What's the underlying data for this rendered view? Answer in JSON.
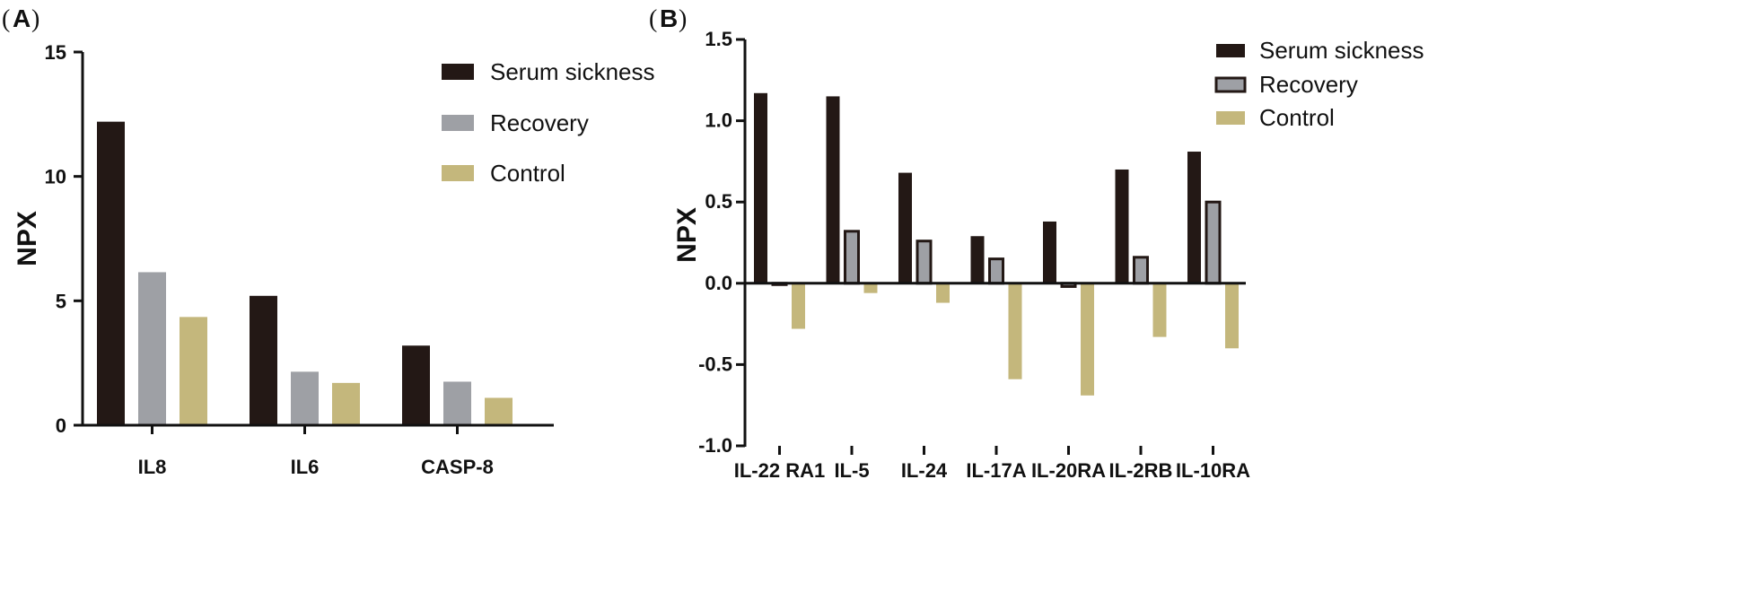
{
  "colors": {
    "serum": "#231815",
    "recovery": "#9ea0a5",
    "control": "#c4b77c",
    "axis": "#111111"
  },
  "chart_data": [
    {
      "panel_open": "(",
      "panel_letter": "A",
      "panel_close": ")",
      "type": "bar",
      "ylabel": "NPX",
      "ylim": [
        0,
        15
      ],
      "yticks": [
        0,
        5,
        10,
        15
      ],
      "ytick_labels": [
        "0",
        "5",
        "10",
        "15"
      ],
      "categories": [
        "IL8",
        "IL6",
        "CASP-8"
      ],
      "series": [
        {
          "name": "Serum sickness",
          "values": [
            12.2,
            5.2,
            3.2
          ]
        },
        {
          "name": "Recovery",
          "values": [
            6.15,
            2.15,
            1.75
          ]
        },
        {
          "name": "Control",
          "values": [
            4.35,
            1.7,
            1.1
          ]
        }
      ],
      "legend_position": "top-right"
    },
    {
      "panel_open": "(",
      "panel_letter": "B",
      "panel_close": ")",
      "type": "bar",
      "ylabel": "NPX",
      "ylim": [
        -1.0,
        1.5
      ],
      "yticks": [
        -1.0,
        -0.5,
        0.0,
        0.5,
        1.0,
        1.5
      ],
      "ytick_labels": [
        "-1.0",
        "-0.5",
        "0.0",
        "0.5",
        "1.0",
        "1.5"
      ],
      "categories": [
        "IL-22 RA1",
        "IL-5",
        "IL-24",
        "IL-17A",
        "IL-20RA",
        "IL-2RB",
        "IL-10RA"
      ],
      "series": [
        {
          "name": "Serum sickness",
          "values": [
            1.17,
            1.15,
            0.68,
            0.29,
            0.38,
            0.7,
            0.81
          ]
        },
        {
          "name": "Recovery",
          "values": [
            0.0,
            0.32,
            0.26,
            0.15,
            -0.02,
            0.16,
            0.5
          ]
        },
        {
          "name": "Control",
          "values": [
            -0.28,
            -0.06,
            -0.12,
            -0.59,
            -0.69,
            -0.33,
            -0.4
          ]
        }
      ],
      "legend_position": "top-right"
    }
  ]
}
